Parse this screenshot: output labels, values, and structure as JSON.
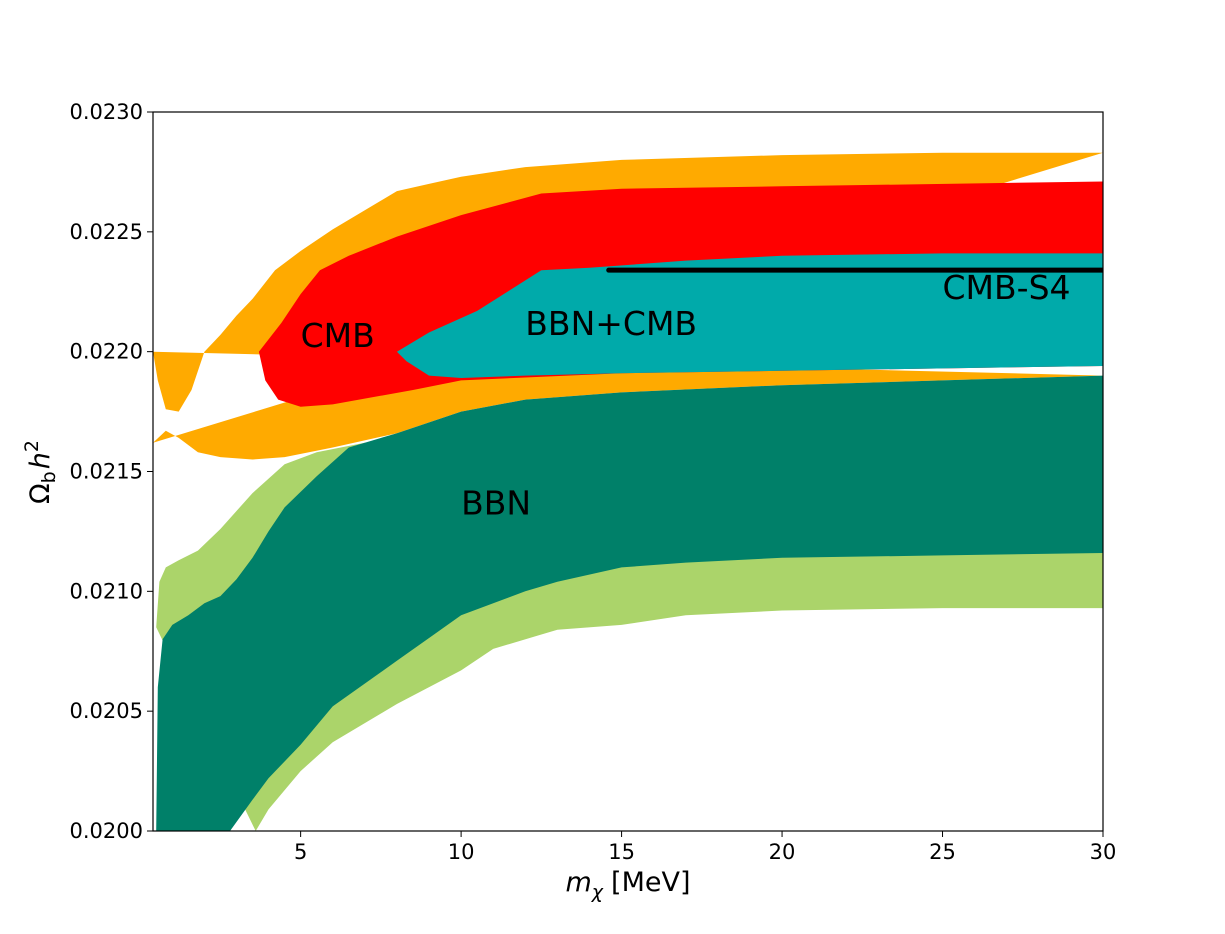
{
  "chart_data": {
    "type": "area",
    "xlabel": {
      "main": "m",
      "sub": "χ",
      "unit": "[MeV]"
    },
    "ylabel": {
      "main": "Ω",
      "sub": "b",
      "h": "h",
      "sup": "2"
    },
    "xlim": [
      0.4,
      30
    ],
    "ylim": [
      0.02,
      0.023
    ],
    "x_ticks": [
      5,
      10,
      15,
      20,
      25,
      30
    ],
    "y_ticks": [
      "0.0200",
      "0.0205",
      "0.0210",
      "0.0215",
      "0.0220",
      "0.0225",
      "0.0230"
    ],
    "grid": false,
    "colors": {
      "cmb_2sigma": "#ffaa00",
      "cmb_1sigma": "#ff0000",
      "bbn_2sigma": "#abd46a",
      "bbn_1sigma": "#008069",
      "bbn_cmb": "#00aaaa",
      "cmb_s4": "#000000"
    },
    "regions": [
      {
        "key": "cmb_2sigma",
        "upper": [
          [
            0.4,
            0.022
          ],
          [
            0.55,
            0.02188
          ],
          [
            0.8,
            0.02176
          ],
          [
            1.2,
            0.02175
          ],
          [
            1.6,
            0.02184
          ],
          [
            2.0,
            0.022
          ],
          [
            2.5,
            0.02207
          ],
          [
            3.0,
            0.02215
          ],
          [
            3.5,
            0.02222
          ],
          [
            4.2,
            0.02234
          ],
          [
            5.0,
            0.02242
          ],
          [
            6.0,
            0.02251
          ],
          [
            7.0,
            0.02259
          ],
          [
            8.0,
            0.02267
          ],
          [
            9.0,
            0.0227
          ],
          [
            10,
            0.02273
          ],
          [
            12,
            0.02277
          ],
          [
            15,
            0.0228
          ],
          [
            20,
            0.02282
          ],
          [
            25,
            0.02283
          ],
          [
            30,
            0.02283
          ]
        ],
        "lower": [
          [
            0.4,
            0.02162
          ],
          [
            0.8,
            0.02167
          ],
          [
            1.2,
            0.02164
          ],
          [
            1.8,
            0.02158
          ],
          [
            2.5,
            0.02156
          ],
          [
            3.5,
            0.02155
          ],
          [
            4.5,
            0.02156
          ],
          [
            6,
            0.0216
          ],
          [
            8,
            0.02166
          ],
          [
            10,
            0.02175
          ],
          [
            12,
            0.0218
          ],
          [
            15,
            0.02183
          ],
          [
            20,
            0.02186
          ],
          [
            25,
            0.02188
          ],
          [
            30,
            0.0219
          ]
        ]
      },
      {
        "key": "bbn_2sigma",
        "upper": [
          [
            0.5,
            0.02085
          ],
          [
            0.6,
            0.02104
          ],
          [
            0.8,
            0.0211
          ],
          [
            1.2,
            0.02113
          ],
          [
            1.8,
            0.02117
          ],
          [
            2.5,
            0.02126
          ],
          [
            3.5,
            0.02141
          ],
          [
            4.5,
            0.02153
          ],
          [
            5.5,
            0.02158
          ],
          [
            7,
            0.02162
          ],
          [
            9,
            0.02165
          ],
          [
            11,
            0.02167
          ],
          [
            13,
            0.02168
          ],
          [
            15,
            0.02169
          ],
          [
            20,
            0.0217
          ],
          [
            25,
            0.0217
          ],
          [
            30,
            0.0217
          ]
        ],
        "lower": [
          [
            30,
            0.02093
          ],
          [
            25,
            0.02093
          ],
          [
            20,
            0.02092
          ],
          [
            17,
            0.0209
          ],
          [
            15,
            0.02086
          ],
          [
            13,
            0.02084
          ],
          [
            11,
            0.02076
          ],
          [
            10,
            0.02067
          ],
          [
            8,
            0.02053
          ],
          [
            6,
            0.02037
          ],
          [
            5,
            0.02025
          ],
          [
            4,
            0.02009
          ],
          [
            3.6,
            0.02
          ]
        ]
      },
      {
        "key": "bbn_1sigma",
        "upper": [
          [
            0.5,
            0.02
          ],
          [
            0.55,
            0.0206
          ],
          [
            0.7,
            0.0208
          ],
          [
            1.0,
            0.02086
          ],
          [
            1.5,
            0.0209
          ],
          [
            2.0,
            0.02095
          ],
          [
            2.5,
            0.02098
          ],
          [
            3.0,
            0.02105
          ],
          [
            3.5,
            0.02114
          ],
          [
            4.0,
            0.02125
          ],
          [
            4.5,
            0.02135
          ],
          [
            5.5,
            0.02148
          ],
          [
            6.5,
            0.0216
          ],
          [
            8,
            0.02166
          ],
          [
            10,
            0.02175
          ],
          [
            12,
            0.0218
          ],
          [
            15,
            0.02183
          ],
          [
            20,
            0.02186
          ],
          [
            25,
            0.02188
          ],
          [
            30,
            0.0219
          ]
        ],
        "lower": [
          [
            30,
            0.02116
          ],
          [
            25,
            0.02115
          ],
          [
            20,
            0.02114
          ],
          [
            17,
            0.02112
          ],
          [
            15,
            0.0211
          ],
          [
            13,
            0.02104
          ],
          [
            12,
            0.021
          ],
          [
            10,
            0.0209
          ],
          [
            8,
            0.02071
          ],
          [
            6,
            0.02052
          ],
          [
            5,
            0.02036
          ],
          [
            4,
            0.02022
          ],
          [
            3.5,
            0.02013
          ],
          [
            2.8,
            0.02
          ]
        ]
      },
      {
        "key": "cmb_1sigma",
        "upper": [
          [
            3.7,
            0.022
          ],
          [
            4.4,
            0.02212
          ],
          [
            5.0,
            0.02224
          ],
          [
            5.6,
            0.02234
          ],
          [
            6.5,
            0.0224
          ],
          [
            8,
            0.02248
          ],
          [
            10,
            0.02257
          ],
          [
            12.5,
            0.02266
          ],
          [
            15,
            0.02268
          ],
          [
            20,
            0.02269
          ],
          [
            30,
            0.02271
          ]
        ],
        "lower": [
          [
            30,
            0.02194
          ],
          [
            15,
            0.02191
          ],
          [
            10,
            0.02188
          ],
          [
            8.5,
            0.02184
          ],
          [
            6,
            0.02178
          ],
          [
            5,
            0.02177
          ],
          [
            4.3,
            0.0218
          ],
          [
            3.9,
            0.02188
          ]
        ]
      },
      {
        "key": "bbn_cmb",
        "upper": [
          [
            8,
            0.022
          ],
          [
            9,
            0.02208
          ],
          [
            10.5,
            0.02217
          ],
          [
            12.5,
            0.02234
          ],
          [
            14,
            0.02235
          ],
          [
            17,
            0.02238
          ],
          [
            20,
            0.0224
          ],
          [
            25,
            0.02241
          ],
          [
            30,
            0.02241
          ]
        ],
        "lower": [
          [
            30,
            0.02194
          ],
          [
            20,
            0.02192
          ],
          [
            15,
            0.02191
          ],
          [
            12,
            0.0219
          ],
          [
            10,
            0.02189
          ],
          [
            9,
            0.0219
          ],
          [
            8.3,
            0.02196
          ]
        ]
      }
    ],
    "cmb_s4_line": {
      "x": [
        14.6,
        30
      ],
      "y": [
        0.02234,
        0.02234
      ]
    },
    "annotations": [
      {
        "key": "cmb",
        "text": "CMB",
        "x": 5.0,
        "y": 0.02202
      },
      {
        "key": "bbn_cmb",
        "text": "BBN+CMB",
        "x": 12.0,
        "y": 0.02207
      },
      {
        "key": "cmb_s4",
        "text": "CMB-S4",
        "x": 25.0,
        "y": 0.02222
      },
      {
        "key": "bbn",
        "text": "BBN",
        "x": 10.0,
        "y": 0.02132
      }
    ]
  }
}
